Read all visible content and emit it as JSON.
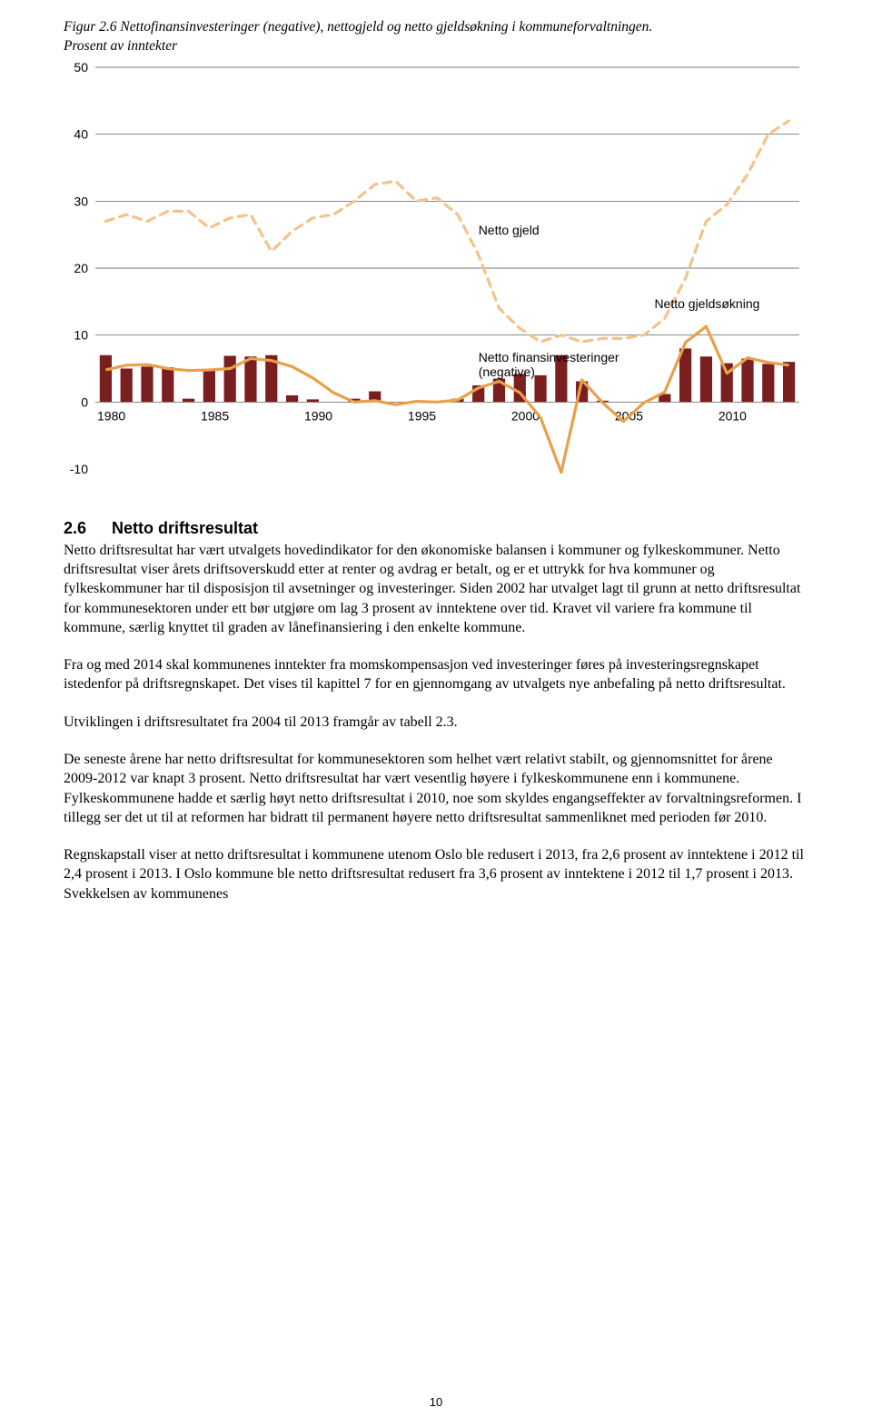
{
  "figure": {
    "title_line1": "Figur 2.6 Nettofinansinvesteringer (negative), nettogjeld og netto gjeldsøkning i kommuneforvaltningen.",
    "title_line2": "Prosent av inntekter",
    "chart": {
      "type": "bar+line+line",
      "background_color": "#ffffff",
      "grid_color": "#444444",
      "axis_font": "Arial",
      "axis_fontsize": 14,
      "ylim": [
        -10,
        50
      ],
      "ytick_step": 10,
      "yticks": [
        -10,
        0,
        10,
        20,
        30,
        40,
        50
      ],
      "x_year_start": 1980,
      "x_year_end": 2013,
      "x_ticks": [
        1980,
        1985,
        1990,
        1995,
        2000,
        2005,
        2010
      ],
      "bar_color": "#7a1f1f",
      "bar_width_ratio": 0.58,
      "line_color": "#e8a04a",
      "line_width": 3.2,
      "dash_color": "#f3c38a",
      "dash_width": 3.2,
      "dash_pattern": "9,7",
      "legend_font": "Arial",
      "legend_fontsize": 14,
      "legend_color": "#000000",
      "legend_items": [
        {
          "key": "netto_gjeld",
          "label": "Netto gjeld"
        },
        {
          "key": "netto_gjeldsokning",
          "label": "Netto gjeldsøkning"
        },
        {
          "key": "netto_finans",
          "label1": "Netto finansinvesteringer",
          "label2": "(negative)"
        }
      ],
      "legend_positions": {
        "netto_gjeld": {
          "x_year": 1998,
          "y_val": 25
        },
        "netto_gjeldsokning": {
          "x_year": 2006.5,
          "y_val": 14
        },
        "netto_finans": {
          "x_year": 1998,
          "y_val": 6
        }
      },
      "bars_values": [
        7.0,
        5.0,
        5.3,
        5.2,
        0.5,
        4.7,
        6.9,
        6.8,
        7.0,
        1.0,
        0.4,
        0.0,
        0.5,
        1.6,
        0.0,
        0.0,
        0.0,
        0.5,
        2.5,
        3.5,
        4.2,
        4.0,
        7.0,
        3.1,
        0.2,
        0.0,
        0.0,
        1.2,
        8.0,
        6.8,
        5.8,
        6.5,
        5.7,
        6.0
      ],
      "line_values": [
        4.8,
        5.5,
        5.6,
        5.0,
        4.7,
        4.8,
        5.0,
        6.5,
        6.2,
        5.3,
        3.6,
        1.4,
        0.0,
        0.2,
        -0.4,
        0.1,
        0.0,
        0.3,
        2.1,
        3.1,
        1.4,
        -2.3,
        -10.5,
        3.3,
        -0.1,
        -2.9,
        -0.1,
        1.5,
        8.9,
        11.3,
        4.3,
        6.6,
        5.9,
        5.5
      ],
      "dash_values": [
        27,
        28,
        27,
        28.5,
        28.5,
        26,
        27.5,
        28,
        22.5,
        25.5,
        27.5,
        28,
        30,
        32.5,
        33,
        30,
        30.5,
        28,
        22,
        14,
        11,
        9,
        10,
        9,
        9.5,
        9.5,
        10,
        12.5,
        18.5,
        27,
        29.5,
        34,
        40,
        42
      ]
    }
  },
  "section": {
    "number": "2.6",
    "title": "Netto driftsresultat"
  },
  "paragraphs": {
    "p1": "Netto driftsresultat har vært utvalgets hovedindikator for den økonomiske balansen i kommuner og fylkeskommuner. Netto driftsresultat viser årets driftsoverskudd etter at renter og avdrag er betalt, og er et uttrykk for hva kommuner og fylkeskommuner har til disposisjon til avsetninger og investeringer. Siden 2002 har utvalget lagt til grunn at netto driftsresultat for kommunesektoren under ett bør utgjøre om lag 3 prosent av inntektene over tid. Kravet vil variere fra kommune til kommune, særlig knyttet til graden av lånefinansiering i den enkelte kommune.",
    "p2": "Fra og med 2014 skal kommunenes inntekter fra momskompensasjon ved investeringer føres på investeringsregnskapet istedenfor på driftsregnskapet. Det vises til kapittel 7 for en gjennomgang av utvalgets nye anbefaling på netto driftsresultat.",
    "p3": "Utviklingen i driftsresultatet fra 2004 til 2013 framgår av tabell 2.3.",
    "p4": "De seneste årene har netto driftsresultat for kommunesektoren som helhet vært relativt stabilt, og gjennomsnittet for årene 2009-2012 var knapt 3 prosent. Netto driftsresultat har vært vesentlig høyere i fylkeskommunene enn i kommunene. Fylkeskommunene hadde et særlig høyt netto driftsresultat i 2010, noe som skyldes engangseffekter av forvaltningsreformen. I tillegg ser det ut til at reformen har bidratt til permanent høyere netto driftsresultat sammenliknet med perioden før 2010.",
    "p5": "Regnskapstall viser at netto driftsresultat i kommunene utenom Oslo ble redusert i 2013, fra 2,6 prosent av inntektene i 2012 til 2,4 prosent i 2013. I Oslo kommune ble netto driftsresultat redusert fra 3,6 prosent av inntektene i 2012 til 1,7 prosent i 2013. Svekkelsen av kommunenes"
  },
  "page_number": "10"
}
